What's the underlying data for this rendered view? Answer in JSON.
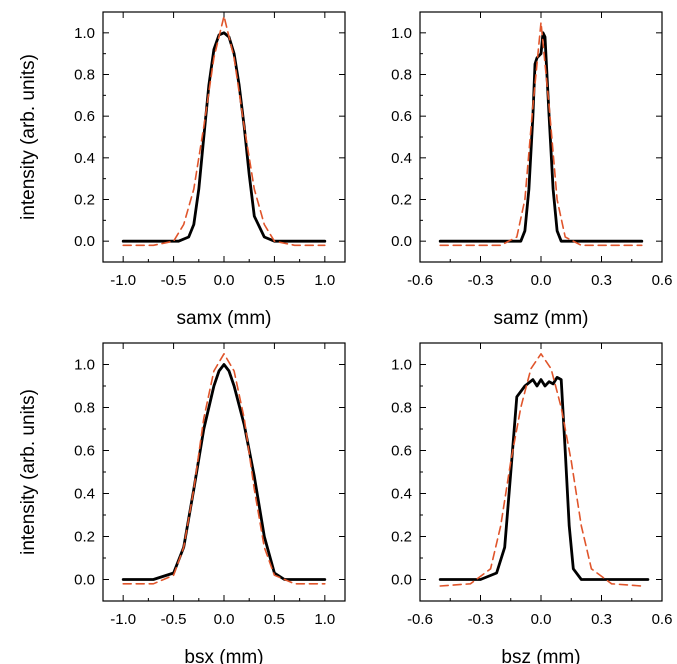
{
  "chart_data": [
    {
      "type": "line",
      "xlabel": "samx (mm)",
      "ylabel": "intensity (arb. units)",
      "xlim": [
        -1.2,
        1.2
      ],
      "ylim": [
        -0.1,
        1.1
      ],
      "xticks": [
        "-1.0",
        "-0.5",
        "0.0",
        "0.5",
        "1.0"
      ],
      "xtick_values": [
        -1.0,
        -0.5,
        0.0,
        0.5,
        1.0
      ],
      "yticks": [
        "0.0",
        "0.2",
        "0.4",
        "0.6",
        "0.8",
        "1.0"
      ],
      "ytick_values": [
        0.0,
        0.2,
        0.4,
        0.6,
        0.8,
        1.0
      ],
      "grid": false,
      "series": [
        {
          "style": "solid",
          "color": "#000000",
          "x": [
            -1.0,
            -0.45,
            -0.35,
            -0.3,
            -0.25,
            -0.2,
            -0.15,
            -0.1,
            -0.05,
            0.0,
            0.05,
            0.1,
            0.15,
            0.2,
            0.25,
            0.3,
            0.4,
            0.5,
            0.7,
            1.0
          ],
          "y": [
            0.0,
            0.0,
            0.02,
            0.08,
            0.25,
            0.5,
            0.75,
            0.92,
            0.99,
            1.0,
            0.98,
            0.9,
            0.75,
            0.55,
            0.32,
            0.12,
            0.02,
            0.0,
            0.0,
            0.0
          ]
        },
        {
          "style": "dashed",
          "color": "#E0552B",
          "x": [
            -1.0,
            -0.7,
            -0.5,
            -0.4,
            -0.3,
            -0.2,
            -0.1,
            0.0,
            0.1,
            0.2,
            0.3,
            0.4,
            0.5,
            0.7,
            1.0
          ],
          "y": [
            -0.02,
            -0.02,
            0.0,
            0.08,
            0.25,
            0.55,
            0.88,
            1.08,
            0.88,
            0.55,
            0.25,
            0.08,
            0.0,
            -0.02,
            -0.02
          ]
        }
      ]
    },
    {
      "type": "line",
      "xlabel": "samz (mm)",
      "ylabel": "",
      "xlim": [
        -0.6,
        0.6
      ],
      "ylim": [
        -0.1,
        1.1
      ],
      "xticks": [
        "-0.6",
        "-0.3",
        "0.0",
        "0.3",
        "0.6"
      ],
      "xtick_values": [
        -0.6,
        -0.3,
        0.0,
        0.3,
        0.6
      ],
      "yticks": [
        "0.0",
        "0.2",
        "0.4",
        "0.6",
        "0.8",
        "1.0"
      ],
      "ytick_values": [
        0.0,
        0.2,
        0.4,
        0.6,
        0.8,
        1.0
      ],
      "grid": false,
      "series": [
        {
          "style": "solid",
          "color": "#000000",
          "x": [
            -0.5,
            -0.1,
            -0.08,
            -0.06,
            -0.04,
            -0.03,
            -0.02,
            0.0,
            0.01,
            0.02,
            0.04,
            0.06,
            0.08,
            0.1,
            0.5
          ],
          "y": [
            0.0,
            0.0,
            0.05,
            0.25,
            0.6,
            0.85,
            0.88,
            0.9,
            1.0,
            0.98,
            0.6,
            0.25,
            0.05,
            0.0,
            0.0
          ]
        },
        {
          "style": "dashed",
          "color": "#E0552B",
          "x": [
            -0.5,
            -0.2,
            -0.12,
            -0.08,
            -0.04,
            0.0,
            0.04,
            0.08,
            0.12,
            0.2,
            0.5
          ],
          "y": [
            -0.02,
            -0.02,
            0.02,
            0.2,
            0.65,
            1.05,
            0.65,
            0.2,
            0.02,
            -0.02,
            -0.02
          ]
        }
      ]
    },
    {
      "type": "line",
      "xlabel": "bsx (mm)",
      "ylabel": "intensity (arb. units)",
      "xlim": [
        -1.2,
        1.2
      ],
      "ylim": [
        -0.1,
        1.1
      ],
      "xticks": [
        "-1.0",
        "-0.5",
        "0.0",
        "0.5",
        "1.0"
      ],
      "xtick_values": [
        -1.0,
        -0.5,
        0.0,
        0.5,
        1.0
      ],
      "yticks": [
        "0.0",
        "0.2",
        "0.4",
        "0.6",
        "0.8",
        "1.0"
      ],
      "ytick_values": [
        0.0,
        0.2,
        0.4,
        0.6,
        0.8,
        1.0
      ],
      "grid": false,
      "series": [
        {
          "style": "solid",
          "color": "#000000",
          "x": [
            -1.0,
            -0.85,
            -0.7,
            -0.5,
            -0.4,
            -0.3,
            -0.2,
            -0.1,
            -0.05,
            0.0,
            0.05,
            0.1,
            0.2,
            0.3,
            0.4,
            0.5,
            0.6,
            1.0
          ],
          "y": [
            0.0,
            0.0,
            0.0,
            0.03,
            0.15,
            0.42,
            0.7,
            0.9,
            0.97,
            1.0,
            0.97,
            0.9,
            0.72,
            0.48,
            0.2,
            0.03,
            0.0,
            0.0
          ]
        },
        {
          "style": "dashed",
          "color": "#E0552B",
          "x": [
            -1.0,
            -0.7,
            -0.5,
            -0.4,
            -0.3,
            -0.2,
            -0.1,
            0.0,
            0.1,
            0.2,
            0.3,
            0.4,
            0.5,
            0.7,
            1.0
          ],
          "y": [
            -0.02,
            -0.02,
            0.02,
            0.15,
            0.42,
            0.75,
            0.97,
            1.05,
            0.97,
            0.75,
            0.42,
            0.15,
            0.02,
            -0.02,
            -0.02
          ]
        }
      ]
    },
    {
      "type": "line",
      "xlabel": "bsz (mm)",
      "ylabel": "",
      "xlim": [
        -0.6,
        0.6
      ],
      "ylim": [
        -0.1,
        1.1
      ],
      "xticks": [
        "-0.6",
        "-0.3",
        "0.0",
        "0.3",
        "0.6"
      ],
      "xtick_values": [
        -0.6,
        -0.3,
        0.0,
        0.3,
        0.6
      ],
      "yticks": [
        "0.0",
        "0.2",
        "0.4",
        "0.6",
        "0.8",
        "1.0"
      ],
      "ytick_values": [
        0.0,
        0.2,
        0.4,
        0.6,
        0.8,
        1.0
      ],
      "grid": false,
      "series": [
        {
          "style": "solid",
          "color": "#000000",
          "x": [
            -0.5,
            -0.3,
            -0.22,
            -0.18,
            -0.15,
            -0.12,
            -0.08,
            -0.04,
            -0.02,
            0.0,
            0.02,
            0.04,
            0.06,
            0.08,
            0.1,
            0.12,
            0.14,
            0.16,
            0.2,
            0.3,
            0.53
          ],
          "y": [
            0.0,
            0.0,
            0.03,
            0.15,
            0.5,
            0.85,
            0.9,
            0.93,
            0.9,
            0.93,
            0.9,
            0.92,
            0.91,
            0.94,
            0.93,
            0.6,
            0.25,
            0.05,
            0.0,
            0.0,
            0.0
          ]
        },
        {
          "style": "dashed",
          "color": "#E0552B",
          "x": [
            -0.5,
            -0.35,
            -0.25,
            -0.2,
            -0.15,
            -0.1,
            -0.05,
            0.0,
            0.05,
            0.1,
            0.15,
            0.2,
            0.25,
            0.35,
            0.5
          ],
          "y": [
            -0.03,
            -0.02,
            0.05,
            0.25,
            0.55,
            0.8,
            0.98,
            1.05,
            0.98,
            0.8,
            0.55,
            0.25,
            0.05,
            -0.02,
            -0.03
          ]
        }
      ]
    }
  ]
}
